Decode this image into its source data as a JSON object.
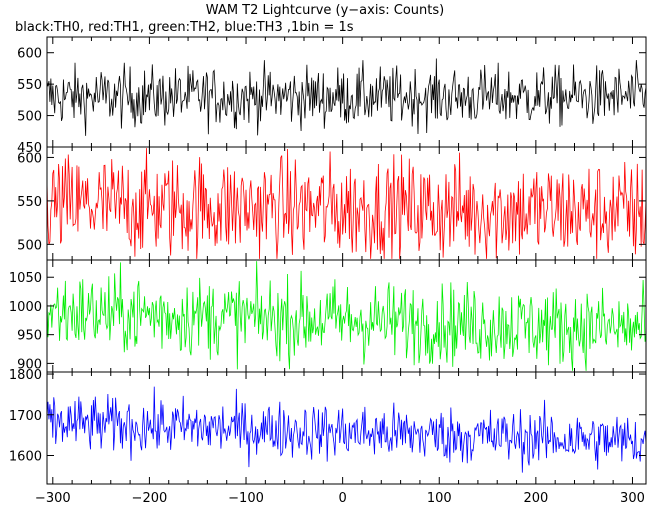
{
  "title": "WAM T2 Lightcurve (y−axis: Counts)",
  "subtitle": "black:TH0, red:TH1, green:TH2, blue:TH3 ,1bin = 1s",
  "chart_data": {
    "type": "line",
    "xlabel": "",
    "xlim": [
      -306,
      314
    ],
    "x_ticks": [
      -300,
      -200,
      -100,
      0,
      100,
      200,
      300
    ],
    "x_tick_labels": [
      "−300",
      "−200",
      "−100",
      "0",
      "100",
      "200",
      "300"
    ],
    "bin_seconds": 1,
    "panels": [
      {
        "series": "TH0",
        "color": "#000000",
        "mean": 530,
        "noise": 24,
        "trend": 0,
        "ylim": [
          450,
          625
        ],
        "yticks": [
          450,
          500,
          550,
          600
        ],
        "ytick_labels": [
          "450",
          "500",
          "550",
          "600"
        ]
      },
      {
        "series": "TH1",
        "color": "#ff0000",
        "mean": 545,
        "noise": 30,
        "trend": -8,
        "ylim": [
          482,
          612
        ],
        "yticks": [
          500,
          550,
          600
        ],
        "ytick_labels": [
          "500",
          "550",
          "600"
        ]
      },
      {
        "series": "TH2",
        "color": "#00ee00",
        "mean": 990,
        "noise": 35,
        "trend": -30,
        "ylim": [
          885,
          1080
        ],
        "yticks": [
          900,
          950,
          1000,
          1050
        ],
        "ytick_labels": [
          "900",
          "950",
          "1000",
          "1050"
        ]
      },
      {
        "series": "TH3",
        "color": "#0000ff",
        "mean": 1680,
        "noise": 35,
        "trend": -45,
        "ylim": [
          1530,
          1805
        ],
        "yticks": [
          1600,
          1700,
          1800
        ],
        "ytick_labels": [
          "1600",
          "1700",
          "1800"
        ]
      }
    ]
  }
}
